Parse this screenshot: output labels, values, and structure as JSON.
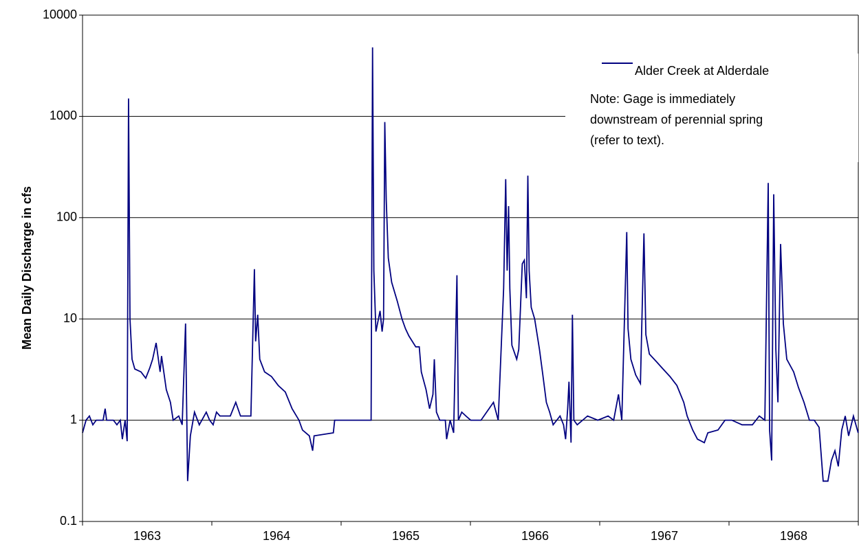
{
  "chart_data": {
    "type": "line",
    "ylabel": "Mean Daily Discharge in cfs",
    "categories": [
      "1963",
      "1964",
      "1965",
      "1966",
      "1967",
      "1968"
    ],
    "xlim": [
      1963,
      1969
    ],
    "ylim": [
      0.1,
      10000
    ],
    "yticks": [
      0.1,
      1,
      10,
      100,
      1000,
      10000
    ],
    "log_scale": true,
    "grid": true,
    "legend": "upper right",
    "annotations": [
      "Note: Gage is immediately",
      "downstream of perennial spring",
      "(refer to text)."
    ],
    "x": [
      1963,
      1963.027,
      1963.053,
      1963.08,
      1963.106,
      1963.159,
      1963.175,
      1963.186,
      1963.239,
      1963.266,
      1963.292,
      1963.308,
      1963.329,
      1963.345,
      1963.356,
      1963.367,
      1963.383,
      1963.404,
      1963.452,
      1963.489,
      1963.521,
      1963.542,
      1963.569,
      1963.6,
      1963.611,
      1963.648,
      1963.68,
      1963.701,
      1963.744,
      1963.771,
      1963.797,
      1963.813,
      1963.834,
      1963.866,
      1963.903,
      1963.957,
      1963.983,
      1964.01,
      1964.036,
      1964.063,
      1964.143,
      1964.185,
      1964.222,
      1964.302,
      1964.329,
      1964.339,
      1964.355,
      1964.371,
      1964.408,
      1964.461,
      1964.514,
      1964.568,
      1964.621,
      1964.674,
      1964.701,
      1964.754,
      1964.78,
      1964.791,
      1964.94,
      1964.95,
      1965.232,
      1965.243,
      1965.253,
      1965.269,
      1965.301,
      1965.317,
      1965.328,
      1965.338,
      1965.349,
      1965.365,
      1965.391,
      1965.434,
      1965.471,
      1965.498,
      1965.524,
      1965.577,
      1965.604,
      1965.62,
      1965.657,
      1965.684,
      1965.71,
      1965.721,
      1965.737,
      1965.763,
      1965.806,
      1965.816,
      1965.843,
      1965.87,
      1965.896,
      1965.907,
      1965.933,
      1965.965,
      1966.002,
      1966.082,
      1966.178,
      1966.215,
      1966.257,
      1966.273,
      1966.284,
      1966.295,
      1966.305,
      1966.321,
      1966.358,
      1966.374,
      1966.401,
      1966.417,
      1966.433,
      1966.444,
      1966.454,
      1966.47,
      1966.497,
      1966.534,
      1966.56,
      1966.587,
      1966.613,
      1966.64,
      1966.693,
      1966.72,
      1966.736,
      1966.752,
      1966.762,
      1966.778,
      1966.789,
      1966.8,
      1966.826,
      1966.906,
      1966.985,
      1967.065,
      1967.108,
      1967.145,
      1967.171,
      1967.209,
      1967.219,
      1967.241,
      1967.278,
      1967.315,
      1967.342,
      1967.357,
      1967.384,
      1967.437,
      1967.49,
      1967.543,
      1967.597,
      1967.65,
      1967.676,
      1967.719,
      1967.756,
      1967.809,
      1967.836,
      1967.915,
      1967.969,
      1968.022,
      1968.101,
      1968.181,
      1968.234,
      1968.277,
      1968.303,
      1968.314,
      1968.33,
      1968.346,
      1968.362,
      1968.378,
      1968.399,
      1968.42,
      1968.447,
      1968.5,
      1968.537,
      1968.58,
      1968.622,
      1968.659,
      1968.697,
      1968.728,
      1968.765,
      1968.792,
      1968.819,
      1968.845,
      1968.872,
      1968.899,
      1968.925,
      1968.962,
      1968.999
    ],
    "series": [
      {
        "name": "Alder Creek at Alderdale",
        "color": "#000080",
        "values": [
          0.75,
          1.0,
          1.1,
          0.9,
          1.0,
          1.0,
          1.3,
          1.0,
          1.0,
          0.9,
          1.0,
          0.65,
          1.0,
          0.62,
          1500,
          10,
          4,
          3.2,
          3.0,
          2.6,
          3.3,
          4,
          5.8,
          3.0,
          4.3,
          2.0,
          1.5,
          1.0,
          1.1,
          0.9,
          9,
          0.25,
          0.7,
          1.2,
          0.9,
          1.2,
          1.0,
          0.9,
          1.2,
          1.1,
          1.1,
          1.5,
          1.1,
          1.1,
          31,
          6,
          11,
          4,
          3,
          2.7,
          2.2,
          1.9,
          1.3,
          1.0,
          0.8,
          0.7,
          0.5,
          0.7,
          0.75,
          1.0,
          1.0,
          4800,
          30,
          7.5,
          12,
          7.5,
          10,
          880,
          150,
          40,
          23,
          15,
          10,
          8,
          6.8,
          5.3,
          5.3,
          3,
          2.0,
          1.3,
          1.8,
          4,
          1.2,
          1.0,
          1.0,
          0.65,
          1.0,
          0.75,
          27,
          1.0,
          1.2,
          1.1,
          1.0,
          1.0,
          1.5,
          1.0,
          20,
          240,
          30,
          130,
          20,
          5.5,
          4,
          5,
          35,
          38,
          16,
          260,
          30,
          13,
          10,
          5,
          2.8,
          1.5,
          1.2,
          0.9,
          1.1,
          0.9,
          0.65,
          1.3,
          2.4,
          0.6,
          11,
          1.0,
          0.9,
          1.1,
          1.0,
          1.1,
          1.0,
          1.8,
          1.0,
          72,
          8,
          4,
          2.8,
          2.3,
          70,
          7,
          4.5,
          3.8,
          3.2,
          2.7,
          2.2,
          1.5,
          1.1,
          0.8,
          0.65,
          0.6,
          0.75,
          0.8,
          1.0,
          1.0,
          0.9,
          0.9,
          1.1,
          1.0,
          220,
          0.8,
          0.4,
          170,
          5,
          1.5,
          55,
          9,
          4,
          3,
          2.1,
          1.5,
          1.0,
          1.0,
          0.85,
          0.25,
          0.25,
          0.4,
          0.5,
          0.35,
          0.8,
          1.1,
          0.7,
          1.1,
          0.75
        ]
      }
    ]
  }
}
